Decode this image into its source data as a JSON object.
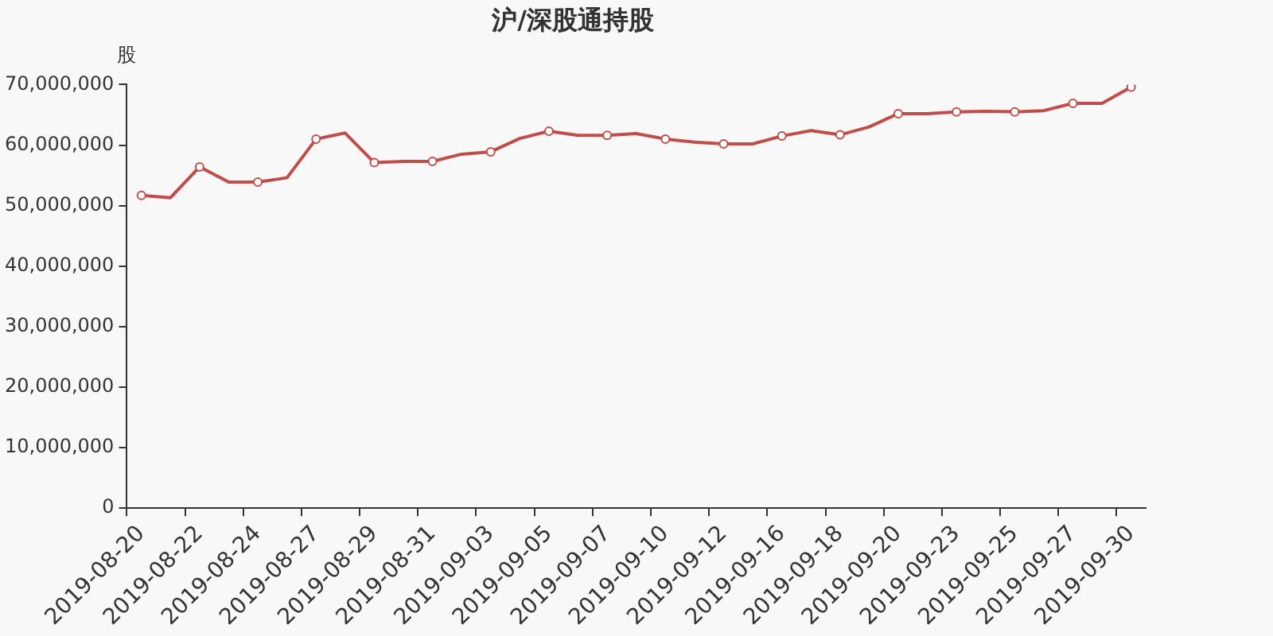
{
  "chart_data": {
    "type": "line",
    "title": "沪/深股通持股",
    "ylabel": "股",
    "categories": [
      "2019-08-20",
      null,
      "2019-08-22",
      null,
      "2019-08-24",
      null,
      "2019-08-27",
      null,
      "2019-08-29",
      null,
      "2019-08-31",
      null,
      "2019-09-03",
      null,
      "2019-09-05",
      null,
      "2019-09-07",
      null,
      "2019-09-10",
      null,
      "2019-09-12",
      null,
      "2019-09-16",
      null,
      "2019-09-18",
      null,
      "2019-09-20",
      null,
      "2019-09-23",
      null,
      "2019-09-25",
      null,
      "2019-09-27",
      null,
      "2019-09-30"
    ],
    "series": [
      {
        "color": "#c14d4b",
        "values": [
          51700000,
          51300000,
          56400000,
          53900000,
          53900000,
          54600000,
          61000000,
          62000000,
          57100000,
          57300000,
          57300000,
          58500000,
          58900000,
          61100000,
          62300000,
          61600000,
          61600000,
          61900000,
          61000000,
          60500000,
          60200000,
          60200000,
          61500000,
          62400000,
          61700000,
          63000000,
          65200000,
          65200000,
          65500000,
          65600000,
          65500000,
          65700000,
          66900000,
          66900000,
          69600000
        ]
      }
    ],
    "ylim": [
      0,
      70000000
    ],
    "yticks": [
      0,
      {
        "value": 10000000,
        "label": "10,000,000"
      },
      {
        "value": 20000000,
        "label": "20,000,000"
      },
      {
        "value": 30000000,
        "label": "30,000,000"
      },
      {
        "value": 40000000,
        "label": "40,000,000"
      },
      {
        "value": 50000000,
        "label": "50,000,000"
      },
      {
        "value": 60000000,
        "label": "60,000,000"
      },
      {
        "value": 70000000,
        "label": "70,000,000"
      }
    ],
    "grid": false,
    "legend": false,
    "marker": "circle",
    "line_style": "solid"
  }
}
